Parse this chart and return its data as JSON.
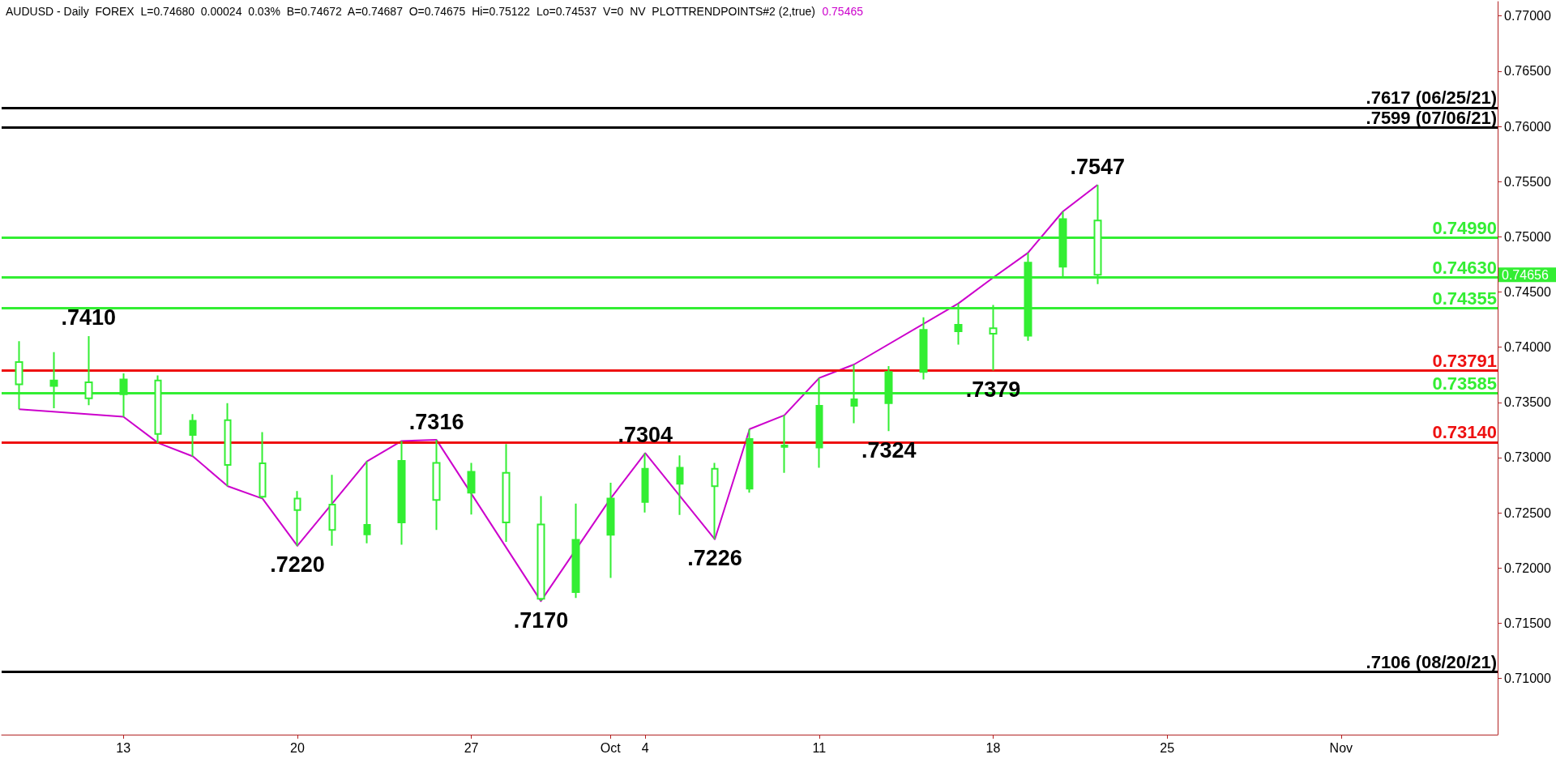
{
  "chart_data": {
    "type": "candlestick",
    "title": "AUDUSD - Daily  FOREX  L=0.74680  0.00024  0.03%  B=0.74672  A=0.74687  O=0.74675  Hi=0.75122  Lo=0.74537  V=0  NV  PLOTTRENDPOINTS#2 (2,true)",
    "categories": [
      null,
      null,
      null,
      "13",
      null,
      null,
      null,
      null,
      "20",
      null,
      null,
      null,
      null,
      "27",
      null,
      null,
      null,
      "Oct",
      "4",
      null,
      null,
      null,
      null,
      "11",
      null,
      null,
      null,
      null,
      "18",
      null,
      null,
      null,
      null,
      "25",
      null,
      null,
      null,
      null,
      "Nov",
      null,
      null,
      null,
      null
    ],
    "series": [
      {
        "color": "#33ee33",
        "ohlc": [
          [
            0.73865,
            0.74054,
            0.73438,
            0.73663
          ],
          [
            0.73649,
            0.73955,
            0.73447,
            0.73699
          ],
          [
            0.73681,
            0.741,
            0.73474,
            0.73537
          ],
          [
            0.73573,
            0.73762,
            0.7337,
            0.73708
          ],
          [
            0.73699,
            0.73744,
            0.73132,
            0.73213
          ],
          [
            0.73204,
            0.73393,
            0.7301,
            0.73334
          ],
          [
            0.73339,
            0.73492,
            0.72741,
            0.72934
          ],
          [
            0.72947,
            0.73231,
            0.72628,
            0.72646
          ],
          [
            0.72628,
            0.72696,
            0.722,
            0.72525
          ],
          [
            0.72574,
            0.72844,
            0.72201,
            0.72345
          ],
          [
            0.72304,
            0.72966,
            0.72223,
            0.7239
          ],
          [
            0.72412,
            0.7315,
            0.72211,
            0.7297
          ],
          [
            0.72952,
            0.7316,
            0.72345,
            0.72615
          ],
          [
            0.72682,
            0.72952,
            0.72484,
            0.72871
          ],
          [
            0.72862,
            0.73123,
            0.72237,
            0.72412
          ],
          [
            0.72394,
            0.72651,
            0.717,
            0.7172
          ],
          [
            0.71782,
            0.72583,
            0.71729,
            0.72255
          ],
          [
            0.723,
            0.72772,
            0.71909,
            0.72628
          ],
          [
            0.72597,
            0.7304,
            0.72502,
            0.72898
          ],
          [
            0.72763,
            0.7302,
            0.7248,
            0.72907
          ],
          [
            0.72898,
            0.72952,
            0.7226,
            0.72741
          ],
          [
            0.72718,
            0.73258,
            0.72682,
            0.73168
          ],
          [
            0.73109,
            0.73384,
            0.72862,
            0.73096
          ],
          [
            0.73091,
            0.73721,
            0.72907,
            0.73469
          ],
          [
            0.73469,
            0.73843,
            0.73312,
            0.73528
          ],
          [
            0.73492,
            0.73829,
            0.7324,
            0.73775
          ],
          [
            0.73775,
            0.7427,
            0.73708,
            0.74157
          ],
          [
            0.74144,
            0.74396,
            0.74022,
            0.74202
          ],
          [
            0.74171,
            0.74382,
            0.7379,
            0.74122
          ],
          [
            0.74103,
            0.74855,
            0.74058,
            0.74765
          ],
          [
            0.74729,
            0.75228,
            0.74639,
            0.7516
          ],
          [
            0.75147,
            0.7547,
            0.74571,
            0.74656
          ],
          null,
          null,
          null,
          null,
          null,
          null,
          null,
          null,
          null,
          null,
          null
        ]
      },
      {
        "type": "line",
        "color": "#cc00cc",
        "values": [
          0.73438,
          null,
          null,
          0.7337,
          0.73132,
          0.7301,
          0.72741,
          0.72628,
          0.722,
          null,
          0.72966,
          0.7315,
          0.7316,
          null,
          null,
          0.717,
          null,
          0.72628,
          0.7304,
          null,
          0.7226,
          0.73258,
          0.73384,
          0.73721,
          0.73843,
          null,
          null,
          0.74396,
          0.7463,
          0.74855,
          0.75228,
          0.7547,
          null,
          null,
          null,
          null,
          null,
          null,
          null,
          null,
          null,
          null,
          null
        ]
      }
    ],
    "marker": "none",
    "line_style": "solid",
    "ylim": [
      0.7049,
      0.7713
    ],
    "yticks": [
      {
        "value": 0.71,
        "label": "0.71000"
      },
      {
        "value": 0.715,
        "label": "0.71500"
      },
      {
        "value": 0.72,
        "label": "0.72000"
      },
      {
        "value": 0.725,
        "label": "0.72500"
      },
      {
        "value": 0.73,
        "label": "0.73000"
      },
      {
        "value": 0.735,
        "label": "0.73500"
      },
      {
        "value": 0.74,
        "label": "0.74000"
      },
      {
        "value": 0.745,
        "label": "0.74500"
      },
      {
        "value": 0.75,
        "label": "0.75000"
      },
      {
        "value": 0.755,
        "label": "0.75500"
      },
      {
        "value": 0.76,
        "label": "0.76000"
      },
      {
        "value": 0.765,
        "label": "0.76500"
      },
      {
        "value": 0.77,
        "label": "0.77000"
      }
    ],
    "ref_lines": [
      {
        "axis": "y",
        "value": 0.7617,
        "label": ".7617 (06/25/21)",
        "color": "#000000"
      },
      {
        "axis": "y",
        "value": 0.7599,
        "label": ".7599 (07/06/21)",
        "color": "#000000"
      },
      {
        "axis": "y",
        "value": 0.7499,
        "label": "0.74990",
        "color": "#33ee33"
      },
      {
        "axis": "y",
        "value": 0.7463,
        "label": "0.74630",
        "color": "#33ee33"
      },
      {
        "axis": "y",
        "value": 0.74355,
        "label": "0.74355",
        "color": "#33ee33"
      },
      {
        "axis": "y",
        "value": 0.73791,
        "label": "0.73791",
        "color": "#ee1111"
      },
      {
        "axis": "y",
        "value": 0.73585,
        "label": "0.73585",
        "color": "#33ee33"
      },
      {
        "axis": "y",
        "value": 0.7314,
        "label": "0.73140",
        "color": "#ee1111"
      },
      {
        "axis": "y",
        "value": 0.7106,
        "label": ".7106 (08/20/21)",
        "color": "#000000"
      }
    ],
    "annotations": [
      "0.75465",
      {
        "text": ".7410",
        "y": 0.741
      },
      {
        "text": ".7220",
        "y": 0.722
      },
      {
        "text": ".7316",
        "y": 0.7316
      },
      {
        "text": ".7170",
        "y": 0.717
      },
      {
        "text": ".7304",
        "y": 0.7304
      },
      {
        "text": ".7226",
        "y": 0.7226
      },
      {
        "text": ".7324",
        "y": 0.7324
      },
      {
        "text": ".7379",
        "y": 0.7379
      },
      {
        "text": ".7547",
        "y": 0.7547
      },
      "0.74656"
    ]
  }
}
